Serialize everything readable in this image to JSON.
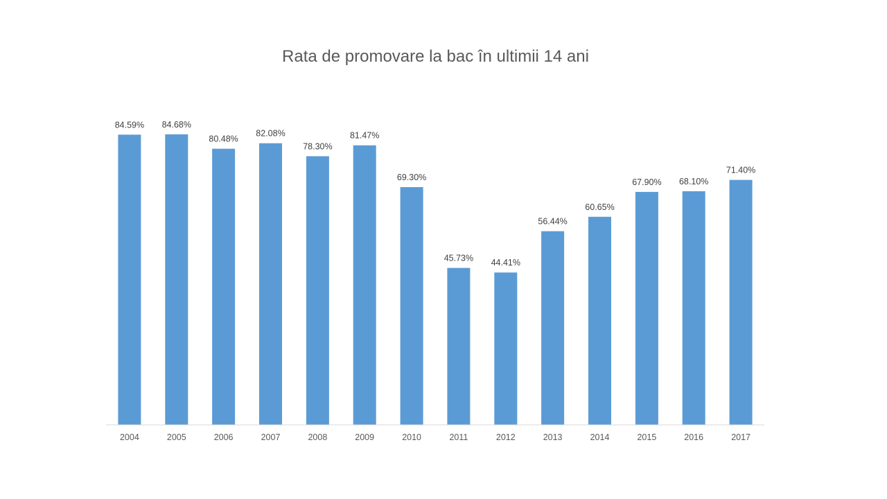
{
  "chart_data": {
    "type": "bar",
    "title": "Rata de promovare la bac în ultimii 14 ani",
    "categories": [
      "2004",
      "2005",
      "2006",
      "2007",
      "2008",
      "2009",
      "2010",
      "2011",
      "2012",
      "2013",
      "2014",
      "2015",
      "2016",
      "2017"
    ],
    "values": [
      84.59,
      84.68,
      80.48,
      82.08,
      78.3,
      81.47,
      69.3,
      45.73,
      44.41,
      56.44,
      60.65,
      67.9,
      68.1,
      71.4
    ],
    "data_labels": [
      "84.59%",
      "84.68%",
      "80.48%",
      "82.08%",
      "78.30%",
      "81.47%",
      "69.30%",
      "45.73%",
      "44.41%",
      "56.44%",
      "60.65%",
      "67.90%",
      "68.10%",
      "71.40%"
    ],
    "xlabel": "",
    "ylabel": "",
    "ylim": [
      0,
      100
    ],
    "grid": false,
    "legend": "none",
    "bar_color": "#5B9BD5",
    "axis_color": "#D9D9D9"
  }
}
